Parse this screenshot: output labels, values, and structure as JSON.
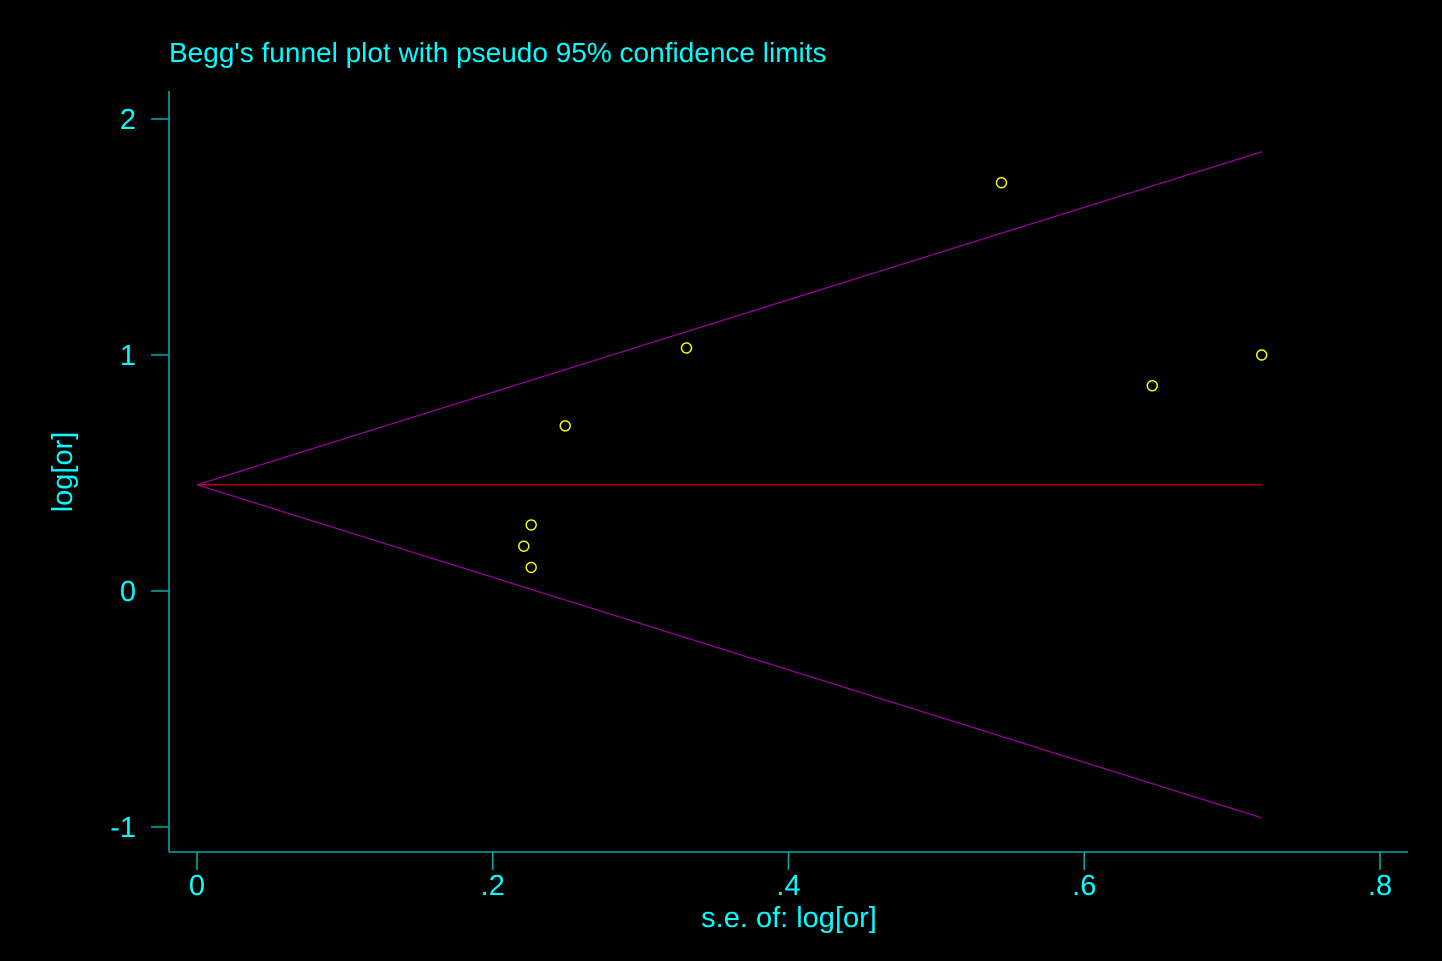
{
  "chart_data": {
    "type": "scatter",
    "title": "Begg's funnel plot with pseudo 95% confidence limits",
    "xlabel": "s.e. of: log[or]",
    "ylabel": "log[or]",
    "xlim": [
      0,
      0.8
    ],
    "ylim": [
      -1,
      2
    ],
    "x_ticks": [
      {
        "value": 0,
        "label": "0"
      },
      {
        "value": 0.2,
        "label": ".2"
      },
      {
        "value": 0.4,
        "label": ".4"
      },
      {
        "value": 0.6,
        "label": ".6"
      },
      {
        "value": 0.8,
        "label": ".8"
      }
    ],
    "y_ticks": [
      {
        "value": -1,
        "label": "-1"
      },
      {
        "value": 0,
        "label": "0"
      },
      {
        "value": 1,
        "label": "1"
      },
      {
        "value": 2,
        "label": "2"
      }
    ],
    "grid": false,
    "points": [
      {
        "x": 0.221,
        "y": 0.19
      },
      {
        "x": 0.226,
        "y": 0.28
      },
      {
        "x": 0.226,
        "y": 0.1
      },
      {
        "x": 0.249,
        "y": 0.7
      },
      {
        "x": 0.331,
        "y": 1.03
      },
      {
        "x": 0.544,
        "y": 1.73
      },
      {
        "x": 0.646,
        "y": 0.87
      },
      {
        "x": 0.72,
        "y": 1.0
      }
    ],
    "pooled_estimate": 0.45,
    "max_se": 0.72,
    "colors": {
      "background": "#000000",
      "text": "#00ffff",
      "axis": "#00a8a8",
      "points": "#ffff00",
      "pooled_line": "#c00000",
      "confidence_limits": "#a000a0"
    }
  }
}
